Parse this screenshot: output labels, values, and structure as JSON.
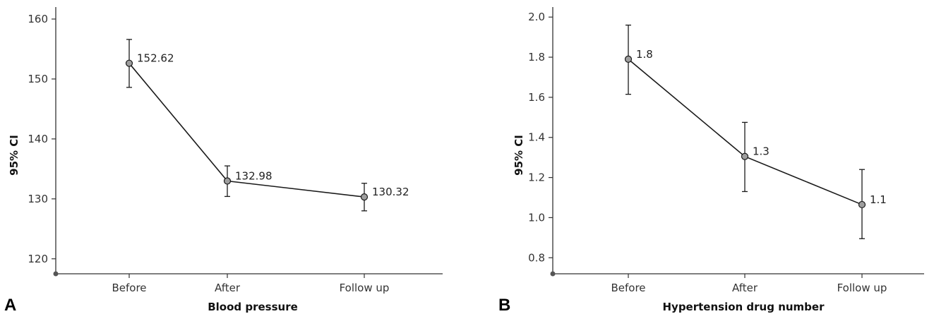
{
  "chart_data": [
    {
      "type": "line",
      "panel_label": "A",
      "xlabel": "Blood pressure",
      "ylabel": "95% CI",
      "categories": [
        "Before",
        "After",
        "Follow up"
      ],
      "values": [
        152.62,
        132.98,
        130.32
      ],
      "value_labels": [
        "152.62",
        "132.98",
        "130.32"
      ],
      "ci_low": [
        148.6,
        130.4,
        128.0
      ],
      "ci_high": [
        156.6,
        135.5,
        132.6
      ],
      "ylim": [
        117.5,
        162
      ],
      "yticks": [
        120,
        130,
        140,
        150,
        160
      ],
      "ytick_labels": [
        "120",
        "130",
        "140",
        "150",
        "160"
      ],
      "grid": false
    },
    {
      "type": "line",
      "panel_label": "B",
      "xlabel": "Hypertension drug number",
      "ylabel": "95% CI",
      "categories": [
        "Before",
        "After",
        "Follow up"
      ],
      "values": [
        1.79,
        1.305,
        1.065
      ],
      "value_labels": [
        "1.8",
        "1.3",
        "1.1"
      ],
      "ci_low": [
        1.615,
        1.13,
        0.895
      ],
      "ci_high": [
        1.96,
        1.475,
        1.24
      ],
      "ylim": [
        0.72,
        2.05
      ],
      "yticks": [
        0.8,
        1.0,
        1.2,
        1.4,
        1.6,
        1.8,
        2.0
      ],
      "ytick_labels": [
        "0.8",
        "1.0",
        "1.2",
        "1.4",
        "1.6",
        "1.8",
        "2.0"
      ],
      "grid": false
    }
  ],
  "colors": {
    "line": "#1a1a1a",
    "marker_fill": "#9e9e9e",
    "axis": "#333333"
  }
}
